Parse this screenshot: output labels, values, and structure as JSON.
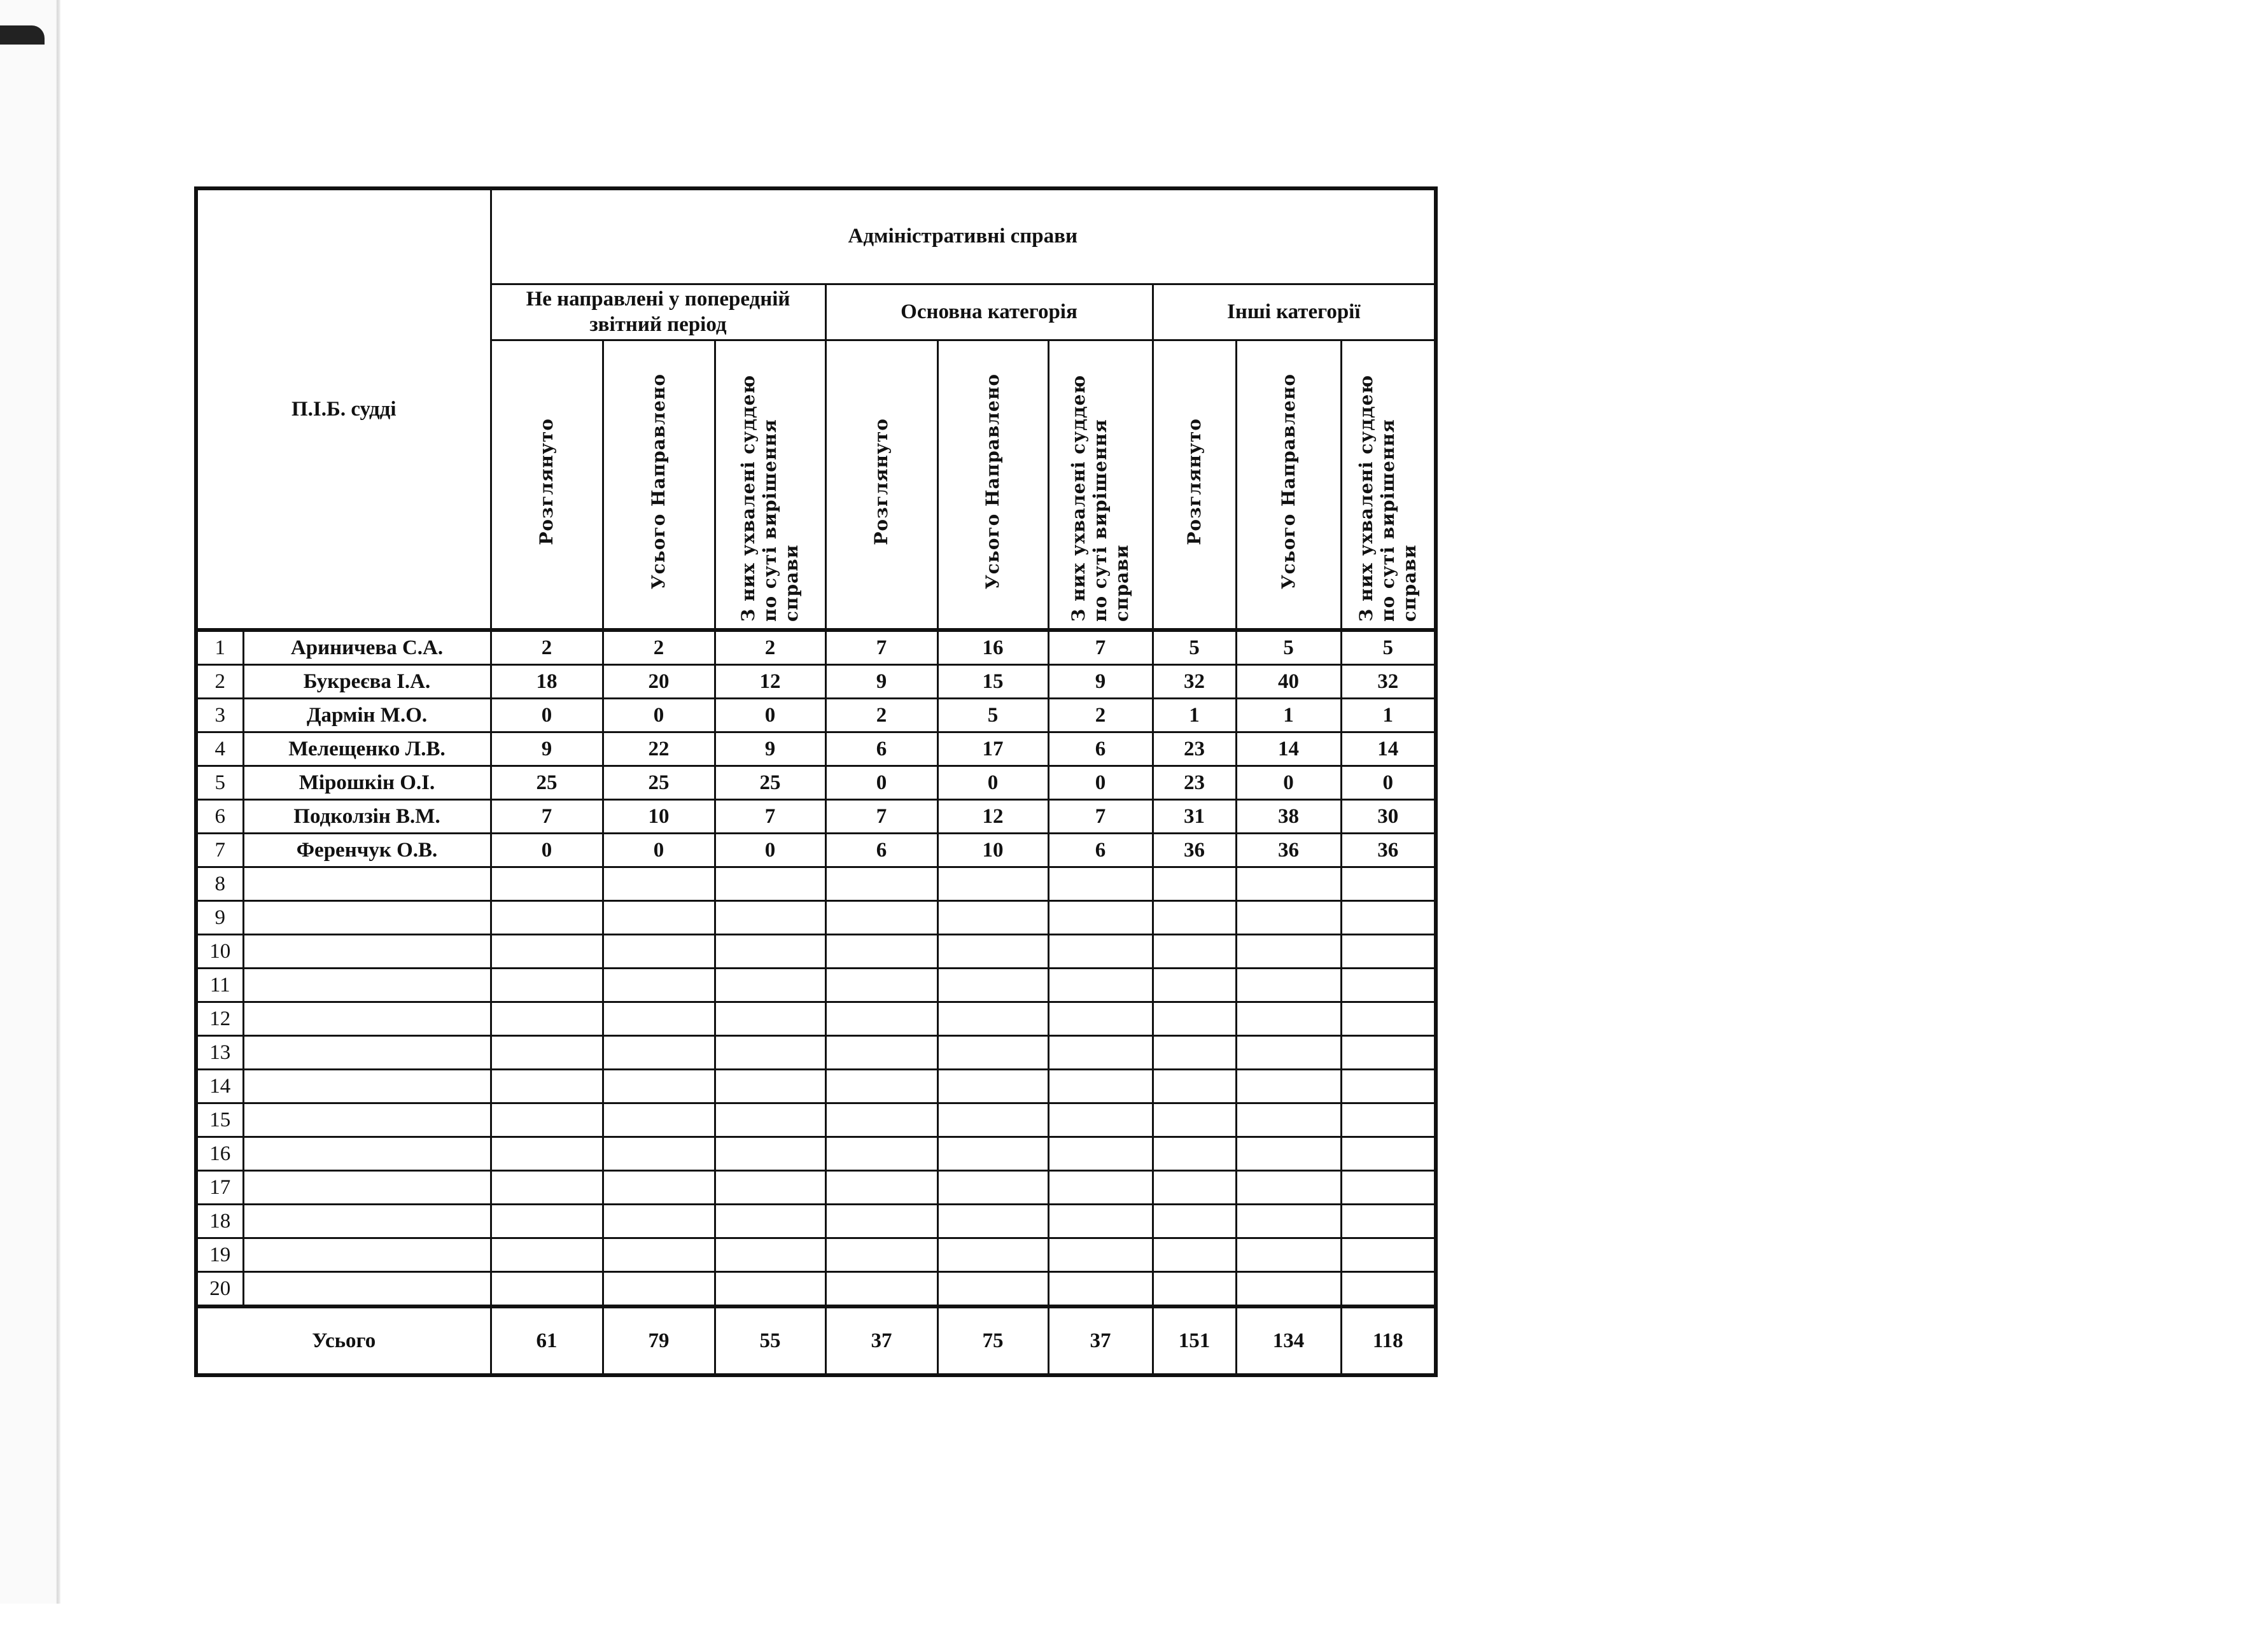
{
  "table": {
    "judge_header": "П.І.Б. судді",
    "group_header": "Адміністративні справи",
    "subgroups": [
      "Не направлені у попередній звітний період",
      "Основна категорія",
      "Інші категорії"
    ],
    "columns": [
      "Розглянуто",
      "Усього Направлено",
      "З них ухвалені суддею по суті вирішення справи"
    ],
    "rows": [
      {
        "n": "1",
        "name": "Ариничева С.А.",
        "values": [
          "2",
          "2",
          "2",
          "7",
          "16",
          "7",
          "5",
          "5",
          "5"
        ]
      },
      {
        "n": "2",
        "name": "Букреєва І.А.",
        "values": [
          "18",
          "20",
          "12",
          "9",
          "15",
          "9",
          "32",
          "40",
          "32"
        ]
      },
      {
        "n": "3",
        "name": "Дармін М.О.",
        "values": [
          "0",
          "0",
          "0",
          "2",
          "5",
          "2",
          "1",
          "1",
          "1"
        ]
      },
      {
        "n": "4",
        "name": "Мелещенко Л.В.",
        "values": [
          "9",
          "22",
          "9",
          "6",
          "17",
          "6",
          "23",
          "14",
          "14"
        ]
      },
      {
        "n": "5",
        "name": "Мірошкін О.І.",
        "values": [
          "25",
          "25",
          "25",
          "0",
          "0",
          "0",
          "23",
          "0",
          "0"
        ]
      },
      {
        "n": "6",
        "name": "Подколзін В.М.",
        "values": [
          "7",
          "10",
          "7",
          "7",
          "12",
          "7",
          "31",
          "38",
          "30"
        ]
      },
      {
        "n": "7",
        "name": "Ференчук О.В.",
        "values": [
          "0",
          "0",
          "0",
          "6",
          "10",
          "6",
          "36",
          "36",
          "36"
        ]
      },
      {
        "n": "8",
        "name": "",
        "values": [
          "",
          "",
          "",
          "",
          "",
          "",
          "",
          "",
          ""
        ]
      },
      {
        "n": "9",
        "name": "",
        "values": [
          "",
          "",
          "",
          "",
          "",
          "",
          "",
          "",
          ""
        ]
      },
      {
        "n": "10",
        "name": "",
        "values": [
          "",
          "",
          "",
          "",
          "",
          "",
          "",
          "",
          ""
        ]
      },
      {
        "n": "11",
        "name": "",
        "values": [
          "",
          "",
          "",
          "",
          "",
          "",
          "",
          "",
          ""
        ]
      },
      {
        "n": "12",
        "name": "",
        "values": [
          "",
          "",
          "",
          "",
          "",
          "",
          "",
          "",
          ""
        ]
      },
      {
        "n": "13",
        "name": "",
        "values": [
          "",
          "",
          "",
          "",
          "",
          "",
          "",
          "",
          ""
        ]
      },
      {
        "n": "14",
        "name": "",
        "values": [
          "",
          "",
          "",
          "",
          "",
          "",
          "",
          "",
          ""
        ]
      },
      {
        "n": "15",
        "name": "",
        "values": [
          "",
          "",
          "",
          "",
          "",
          "",
          "",
          "",
          ""
        ]
      },
      {
        "n": "16",
        "name": "",
        "values": [
          "",
          "",
          "",
          "",
          "",
          "",
          "",
          "",
          ""
        ]
      },
      {
        "n": "17",
        "name": "",
        "values": [
          "",
          "",
          "",
          "",
          "",
          "",
          "",
          "",
          ""
        ]
      },
      {
        "n": "18",
        "name": "",
        "values": [
          "",
          "",
          "",
          "",
          "",
          "",
          "",
          "",
          ""
        ]
      },
      {
        "n": "19",
        "name": "",
        "values": [
          "",
          "",
          "",
          "",
          "",
          "",
          "",
          "",
          ""
        ]
      },
      {
        "n": "20",
        "name": "",
        "values": [
          "",
          "",
          "",
          "",
          "",
          "",
          "",
          "",
          ""
        ]
      }
    ],
    "total": {
      "label": "Усього",
      "values": [
        "61",
        "79",
        "55",
        "37",
        "75",
        "37",
        "151",
        "134",
        "118"
      ]
    }
  }
}
